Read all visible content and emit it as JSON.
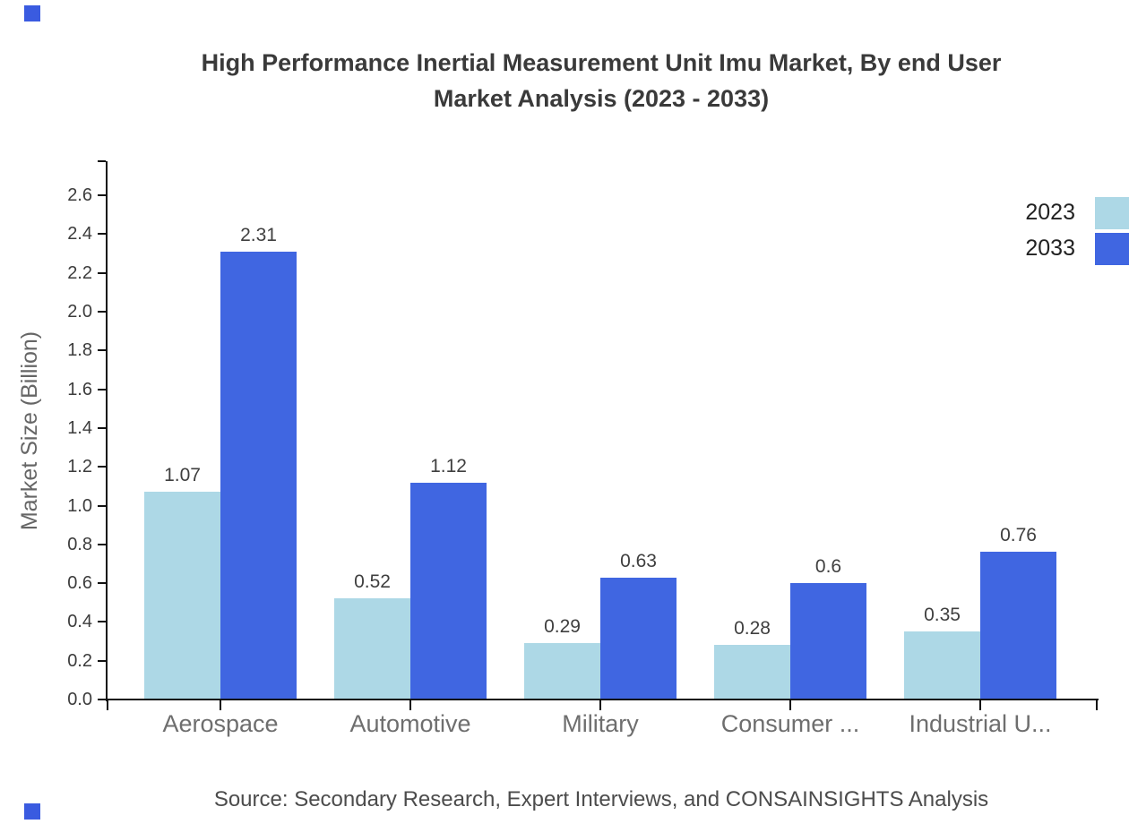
{
  "page": {
    "title_line1": "High Performance Inertial Measurement Unit Imu Market, By end User",
    "title_line2": "Market Analysis (2023 - 2033)",
    "source": "Source: Secondary Research, Expert Interviews, and CONSAINSIGHTS Analysis"
  },
  "chart_data": {
    "type": "bar",
    "title": "High Performance Inertial Measurement Unit Imu Market, By end User Market Analysis (2023 - 2033)",
    "categories": [
      "Aerospace",
      "Automotive",
      "Military",
      "Consumer ...",
      "Industrial U..."
    ],
    "series": [
      {
        "name": "2023",
        "color": "#ADD8E6",
        "values": [
          1.07,
          0.52,
          0.29,
          0.28,
          0.35
        ],
        "labels": [
          "1.07",
          "0.52",
          "0.29",
          "0.28",
          "0.35"
        ]
      },
      {
        "name": "2033",
        "color": "#4066E1",
        "values": [
          2.31,
          1.12,
          0.63,
          0.6,
          0.76
        ],
        "labels": [
          "2.31",
          "1.12",
          "0.63",
          "0.6",
          "0.76"
        ]
      }
    ],
    "xlabel": "",
    "ylabel": "Market Size (Billion)",
    "ylim": [
      0,
      2.8
    ],
    "yticks": [
      "0.0",
      "0.2",
      "0.4",
      "0.6",
      "0.8",
      "1.0",
      "1.2",
      "1.4",
      "1.6",
      "1.8",
      "2.0",
      "2.2",
      "2.4",
      "2.6"
    ],
    "grid": false,
    "value_labels_shown": true,
    "legend_position": "top-right"
  },
  "colors": {
    "axis": "#111111",
    "series_2023": "#ADD8E6",
    "series_2033": "#4066E1",
    "corner_mark": "#3A5BE0"
  }
}
